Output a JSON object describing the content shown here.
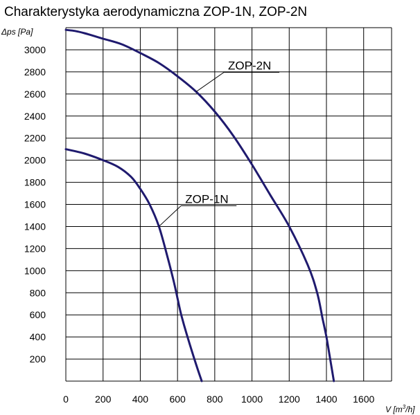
{
  "chart_data": {
    "type": "line",
    "title": "Charakterystyka aerodynamiczna  ZOP-1N, ZOP-2N",
    "ylabel": "Δps [Pa]",
    "xlabel": {
      "prefix": "V [m",
      "sup": "3",
      "suffix": "/h]"
    },
    "xlim": [
      0,
      1750
    ],
    "ylim": [
      0,
      3200
    ],
    "x_ticks": [
      0,
      200,
      400,
      600,
      800,
      1000,
      1200,
      1400,
      1600
    ],
    "y_ticks": [
      200,
      400,
      600,
      800,
      1000,
      1200,
      1400,
      1600,
      1800,
      2000,
      2200,
      2400,
      2600,
      2800,
      3000
    ],
    "grid": true,
    "line_color": "#1f1a6e",
    "series": [
      {
        "name": "ZOP-1N",
        "x": [
          0,
          100,
          200,
          280,
          350,
          400,
          450,
          500,
          550,
          580,
          600,
          620,
          650,
          700,
          730
        ],
        "y": [
          2100,
          2060,
          2000,
          1940,
          1850,
          1740,
          1600,
          1400,
          1100,
          900,
          750,
          600,
          420,
          150,
          0
        ]
      },
      {
        "name": "ZOP-2N",
        "x": [
          0,
          50,
          100,
          200,
          300,
          400,
          500,
          600,
          700,
          800,
          900,
          1000,
          1100,
          1200,
          1300,
          1350,
          1380,
          1400,
          1420,
          1440
        ],
        "y": [
          3180,
          3170,
          3150,
          3100,
          3050,
          2970,
          2880,
          2760,
          2620,
          2440,
          2220,
          1960,
          1680,
          1400,
          1050,
          800,
          560,
          400,
          200,
          0
        ]
      }
    ]
  }
}
